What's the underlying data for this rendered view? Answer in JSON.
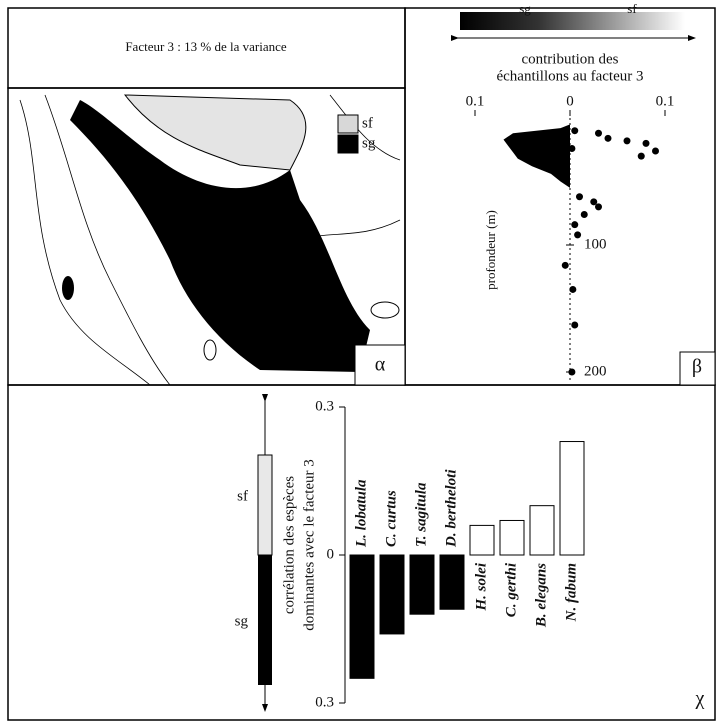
{
  "header": {
    "title": "Facteur 3 : 13 % de la variance"
  },
  "map": {
    "legend": [
      {
        "label": "sf",
        "color": "#d8d8d8"
      },
      {
        "label": "sg",
        "color": "#000000"
      }
    ],
    "panel_label": "α"
  },
  "chart_data": [
    {
      "type": "scatter",
      "panel_label": "β",
      "gradient_labels": [
        "sg",
        "sf"
      ],
      "xlabel": [
        "contribution des",
        "échantillons au facteur 3"
      ],
      "ylabel": "profondeur (m)",
      "xlim": [
        -0.1,
        0.1
      ],
      "xticks": [
        {
          "value": -0.1,
          "label": "0.1"
        },
        0,
        0.1
      ],
      "ylim": [
        0,
        200
      ],
      "yticks": [
        100,
        200
      ],
      "y_inverted": true,
      "color": "#000000",
      "area": {
        "x": [
          0,
          -0.01,
          -0.06,
          -0.07,
          -0.065,
          -0.06,
          -0.055,
          -0.04,
          -0.02,
          -0.01,
          0
        ],
        "y": [
          5,
          8,
          12,
          17,
          22,
          27,
          32,
          38,
          44,
          50,
          55
        ]
      },
      "points": {
        "x": [
          0.005,
          0.03,
          0.04,
          0.06,
          0.08,
          0.09,
          0.075,
          0.002,
          0.01,
          0.025,
          0.03,
          0.015,
          0.005,
          0.008,
          -0.005,
          0.003,
          0.005,
          0.002
        ],
        "y": [
          10,
          12,
          16,
          18,
          20,
          26,
          30,
          24,
          62,
          66,
          70,
          76,
          84,
          92,
          116,
          135,
          163,
          200
        ]
      }
    },
    {
      "type": "bar",
      "panel_label": "χ",
      "ylabel": [
        "corrélation des espèces",
        "dominantes avec le facteur 3"
      ],
      "scale_labels": [
        "sf",
        "sg"
      ],
      "categories": [
        "L. lobatula",
        "C. curtus",
        "T. sagitula",
        "D. bertheloti",
        "H. solei",
        "C. gerthi",
        "B. elegans",
        "N. fabum"
      ],
      "values": [
        -0.25,
        -0.16,
        -0.12,
        -0.11,
        0.06,
        0.07,
        0.1,
        0.23
      ],
      "colors": [
        "#000000",
        "#000000",
        "#000000",
        "#000000",
        "#ffffff",
        "#ffffff",
        "#ffffff",
        "#ffffff"
      ],
      "ylim": [
        -0.3,
        0.3
      ],
      "yticks": [
        0.3,
        0,
        {
          "value": -0.3,
          "label": "0.3"
        }
      ]
    }
  ]
}
